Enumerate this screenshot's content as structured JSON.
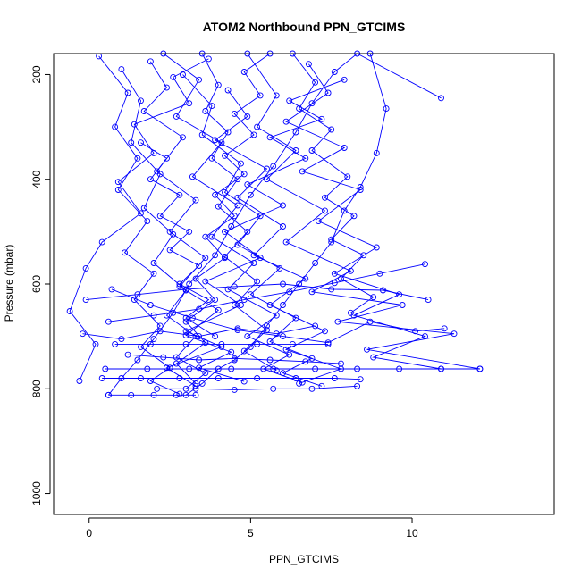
{
  "chart_data": {
    "type": "line",
    "title": "ATOM2 Northbound PPN_GTCIMS",
    "xlabel": "PPN_GTCIMS",
    "ylabel": "Pressure (mbar)",
    "xlim": [
      -1.1,
      14.4
    ],
    "ylim": [
      1040,
      160
    ],
    "y_reversed": true,
    "x_ticks": [
      0,
      5,
      10
    ],
    "y_ticks": [
      200,
      400,
      600,
      800,
      1000
    ],
    "grid": false,
    "legend": "none",
    "marker": "open-circle",
    "series": [
      {
        "points": [
          [
            8.7,
            160
          ],
          [
            9.2,
            265
          ],
          [
            8.9,
            350
          ],
          [
            8.4,
            415
          ],
          [
            7.9,
            460
          ],
          [
            7.5,
            520
          ],
          [
            7.0,
            560
          ],
          [
            6.5,
            600
          ],
          [
            6.0,
            640
          ],
          [
            5.5,
            680
          ],
          [
            5.0,
            720
          ],
          [
            4.5,
            745
          ],
          [
            4.0,
            762
          ],
          [
            3.5,
            790
          ],
          [
            3.0,
            812
          ]
        ]
      },
      {
        "points": [
          [
            0.3,
            165
          ],
          [
            1.2,
            235
          ],
          [
            0.8,
            300
          ],
          [
            1.5,
            360
          ],
          [
            0.9,
            420
          ],
          [
            1.8,
            480
          ],
          [
            1.1,
            540
          ],
          [
            2.0,
            580
          ],
          [
            1.4,
            630
          ],
          [
            2.2,
            680
          ],
          [
            1.6,
            720
          ],
          [
            2.5,
            760
          ],
          [
            1.9,
            785
          ],
          [
            2.8,
            810
          ]
        ]
      },
      {
        "points": [
          [
            2.3,
            160
          ],
          [
            3.4,
            210
          ],
          [
            2.7,
            280
          ],
          [
            4.1,
            330
          ],
          [
            3.2,
            395
          ],
          [
            4.6,
            450
          ],
          [
            3.8,
            510
          ],
          [
            5.1,
            560
          ],
          [
            4.3,
            610
          ],
          [
            5.8,
            660
          ],
          [
            4.9,
            700
          ],
          [
            6.2,
            735
          ],
          [
            5.4,
            762
          ],
          [
            6.6,
            788
          ]
        ]
      },
      {
        "points": [
          [
            10.9,
            245
          ],
          [
            8.3,
            160
          ],
          [
            7.6,
            195
          ],
          [
            6.9,
            255
          ],
          [
            6.4,
            310
          ],
          [
            5.7,
            375
          ],
          [
            5.0,
            430
          ],
          [
            4.4,
            490
          ],
          [
            3.9,
            545
          ],
          [
            3.1,
            600
          ],
          [
            2.6,
            655
          ],
          [
            2.0,
            705
          ],
          [
            1.5,
            745
          ],
          [
            1.0,
            780
          ],
          [
            0.6,
            812
          ]
        ]
      },
      {
        "points": [
          [
            1.9,
            175
          ],
          [
            2.4,
            225
          ],
          [
            1.7,
            270
          ],
          [
            2.9,
            320
          ],
          [
            2.1,
            385
          ],
          [
            3.3,
            440
          ],
          [
            2.5,
            500
          ],
          [
            3.6,
            550
          ],
          [
            2.8,
            605
          ],
          [
            4.0,
            650
          ],
          [
            3.0,
            698
          ],
          [
            4.4,
            730
          ],
          [
            3.4,
            760
          ],
          [
            4.8,
            786
          ]
        ]
      },
      {
        "points": [
          [
            4.9,
            160
          ],
          [
            5.8,
            240
          ],
          [
            5.2,
            300
          ],
          [
            6.4,
            345
          ],
          [
            5.5,
            400
          ],
          [
            7.3,
            460
          ],
          [
            6.1,
            520
          ],
          [
            8.1,
            575
          ],
          [
            6.9,
            615
          ],
          [
            9.7,
            640
          ],
          [
            7.7,
            672
          ],
          [
            11.3,
            695
          ],
          [
            8.6,
            725
          ],
          [
            12.1,
            762
          ]
        ]
      },
      {
        "points": [
          [
            3.7,
            170
          ],
          [
            2.6,
            205
          ],
          [
            3.1,
            255
          ],
          [
            1.4,
            295
          ],
          [
            2.0,
            350
          ],
          [
            0.9,
            405
          ],
          [
            1.6,
            465
          ],
          [
            0.4,
            520
          ],
          [
            -0.1,
            570
          ],
          [
            -0.6,
            652
          ],
          [
            0.2,
            715
          ],
          [
            -0.3,
            785
          ]
        ]
      },
      {
        "points": [
          [
            6.8,
            180
          ],
          [
            7.4,
            235
          ],
          [
            6.1,
            290
          ],
          [
            7.9,
            340
          ],
          [
            6.6,
            385
          ],
          [
            8.4,
            420
          ],
          [
            7.1,
            480
          ],
          [
            8.9,
            530
          ],
          [
            7.6,
            580
          ],
          [
            9.6,
            620
          ],
          [
            8.2,
            660
          ],
          [
            10.4,
            700
          ],
          [
            8.8,
            740
          ],
          [
            10.9,
            762
          ]
        ]
      },
      {
        "points": [
          [
            2.9,
            200
          ],
          [
            3.8,
            260
          ],
          [
            3.5,
            315
          ],
          [
            4.7,
            370
          ],
          [
            4.2,
            425
          ],
          [
            5.3,
            470
          ],
          [
            4.6,
            525
          ],
          [
            5.9,
            570
          ],
          [
            5.0,
            620
          ],
          [
            6.4,
            665
          ],
          [
            5.6,
            710
          ],
          [
            6.9,
            742
          ],
          [
            6.0,
            770
          ],
          [
            7.2,
            795
          ]
        ]
      },
      {
        "points": [
          [
            1.0,
            190
          ],
          [
            1.6,
            250
          ],
          [
            1.3,
            330
          ],
          [
            2.2,
            390
          ],
          [
            1.7,
            455
          ],
          [
            2.6,
            505
          ],
          [
            2.0,
            560
          ],
          [
            3.0,
            612
          ],
          [
            2.4,
            660
          ],
          [
            3.3,
            700
          ],
          [
            2.7,
            740
          ],
          [
            3.6,
            770
          ],
          [
            3.0,
            800
          ]
        ]
      },
      {
        "points": [
          [
            4.3,
            230
          ],
          [
            4.9,
            280
          ],
          [
            3.9,
            325
          ],
          [
            5.5,
            380
          ],
          [
            4.6,
            435
          ],
          [
            6.0,
            490
          ],
          [
            5.1,
            545
          ],
          [
            6.7,
            590
          ],
          [
            5.6,
            640
          ],
          [
            7.3,
            690
          ],
          [
            6.1,
            725
          ],
          [
            7.8,
            762
          ],
          [
            6.5,
            790
          ]
        ]
      },
      {
        "points": [
          [
            7.9,
            210
          ],
          [
            6.2,
            250
          ],
          [
            7.2,
            285
          ],
          [
            5.6,
            320
          ],
          [
            6.7,
            360
          ],
          [
            4.9,
            410
          ],
          [
            6.0,
            450
          ],
          [
            4.2,
            500
          ],
          [
            5.3,
            550
          ],
          [
            3.6,
            595
          ],
          [
            4.7,
            640
          ],
          [
            3.0,
            690
          ],
          [
            4.1,
            720
          ],
          [
            2.4,
            760
          ],
          [
            3.3,
            795
          ]
        ]
      },
      {
        "points": [
          [
            0.7,
            610
          ],
          [
            1.9,
            640
          ],
          [
            3.2,
            665
          ],
          [
            4.6,
            688
          ],
          [
            6.0,
            700
          ],
          [
            7.4,
            712
          ],
          [
            8.7,
            672
          ],
          [
            10.1,
            690
          ],
          [
            11.0,
            685
          ]
        ]
      },
      {
        "points": [
          [
            0.5,
            762
          ],
          [
            1.8,
            762
          ],
          [
            3.1,
            762
          ],
          [
            4.4,
            762
          ],
          [
            5.7,
            762
          ],
          [
            7.0,
            762
          ],
          [
            8.3,
            762
          ],
          [
            9.6,
            762
          ],
          [
            10.9,
            762
          ],
          [
            12.1,
            762
          ]
        ]
      },
      {
        "points": [
          [
            0.8,
            715
          ],
          [
            1.9,
            715
          ],
          [
            3.0,
            715
          ],
          [
            4.1,
            715
          ],
          [
            5.2,
            715
          ],
          [
            6.3,
            715
          ],
          [
            7.4,
            715
          ]
        ]
      },
      {
        "points": [
          [
            0.4,
            780
          ],
          [
            1.6,
            780
          ],
          [
            2.8,
            780
          ],
          [
            4.0,
            780
          ],
          [
            5.2,
            780
          ],
          [
            6.4,
            780
          ],
          [
            7.6,
            780
          ],
          [
            8.4,
            782
          ]
        ]
      },
      {
        "points": [
          [
            0.6,
            812
          ],
          [
            1.3,
            812
          ],
          [
            2.0,
            812
          ],
          [
            2.7,
            812
          ],
          [
            3.3,
            812
          ]
        ]
      },
      {
        "points": [
          [
            1.2,
            735
          ],
          [
            2.3,
            740
          ],
          [
            3.4,
            745
          ],
          [
            4.5,
            742
          ],
          [
            5.6,
            745
          ],
          [
            6.7,
            748
          ],
          [
            7.8,
            752
          ]
        ]
      },
      {
        "points": [
          [
            -0.2,
            695
          ],
          [
            1.0,
            705
          ],
          [
            2.2,
            690
          ],
          [
            3.4,
            700
          ],
          [
            4.6,
            685
          ],
          [
            5.8,
            695
          ],
          [
            7.0,
            680
          ]
        ]
      },
      {
        "points": [
          [
            10.4,
            562
          ],
          [
            9.0,
            580
          ],
          [
            7.6,
            598
          ],
          [
            6.2,
            615
          ],
          [
            4.8,
            630
          ],
          [
            3.4,
            648
          ],
          [
            2.0,
            660
          ],
          [
            0.6,
            672
          ]
        ]
      },
      {
        "points": [
          [
            -0.1,
            630
          ],
          [
            1.5,
            620
          ],
          [
            3.0,
            610
          ],
          [
            4.5,
            605
          ],
          [
            6.0,
            600
          ],
          [
            7.5,
            610
          ],
          [
            9.1,
            612
          ],
          [
            10.5,
            630
          ]
        ]
      },
      {
        "points": [
          [
            2.1,
            800
          ],
          [
            3.3,
            800
          ],
          [
            4.5,
            802
          ],
          [
            5.7,
            800
          ],
          [
            6.9,
            800
          ],
          [
            8.3,
            795
          ]
        ]
      },
      {
        "points": [
          [
            3.5,
            160
          ],
          [
            4.0,
            220
          ],
          [
            3.6,
            270
          ],
          [
            4.3,
            310
          ],
          [
            3.8,
            360
          ],
          [
            4.6,
            400
          ],
          [
            4.0,
            452
          ],
          [
            4.9,
            500
          ],
          [
            4.2,
            548
          ],
          [
            5.2,
            595
          ],
          [
            4.5,
            640
          ],
          [
            5.5,
            688
          ],
          [
            4.8,
            728
          ],
          [
            5.8,
            765
          ]
        ]
      },
      {
        "points": [
          [
            5.6,
            160
          ],
          [
            4.8,
            195
          ],
          [
            5.3,
            240
          ],
          [
            4.5,
            275
          ],
          [
            5.1,
            315
          ],
          [
            4.2,
            355
          ],
          [
            4.8,
            390
          ],
          [
            3.9,
            430
          ],
          [
            4.5,
            470
          ],
          [
            3.6,
            510
          ],
          [
            4.2,
            550
          ],
          [
            3.3,
            590
          ],
          [
            3.9,
            630
          ],
          [
            3.0,
            672
          ],
          [
            3.6,
            712
          ],
          [
            2.7,
            752
          ],
          [
            3.3,
            790
          ]
        ]
      },
      {
        "points": [
          [
            6.3,
            160
          ],
          [
            7.0,
            215
          ],
          [
            6.5,
            265
          ],
          [
            7.5,
            305
          ],
          [
            6.9,
            345
          ],
          [
            8.0,
            395
          ],
          [
            7.3,
            435
          ],
          [
            8.2,
            470
          ],
          [
            7.5,
            515
          ],
          [
            8.5,
            545
          ],
          [
            7.8,
            590
          ],
          [
            8.8,
            625
          ],
          [
            8.1,
            655
          ]
        ]
      },
      {
        "points": [
          [
            1.6,
            330
          ],
          [
            2.4,
            360
          ],
          [
            1.9,
            400
          ],
          [
            2.8,
            430
          ],
          [
            2.2,
            470
          ],
          [
            3.1,
            500
          ],
          [
            2.5,
            535
          ],
          [
            3.4,
            565
          ],
          [
            2.8,
            600
          ],
          [
            3.7,
            630
          ],
          [
            3.0,
            665
          ],
          [
            3.9,
            700
          ]
        ]
      }
    ]
  }
}
